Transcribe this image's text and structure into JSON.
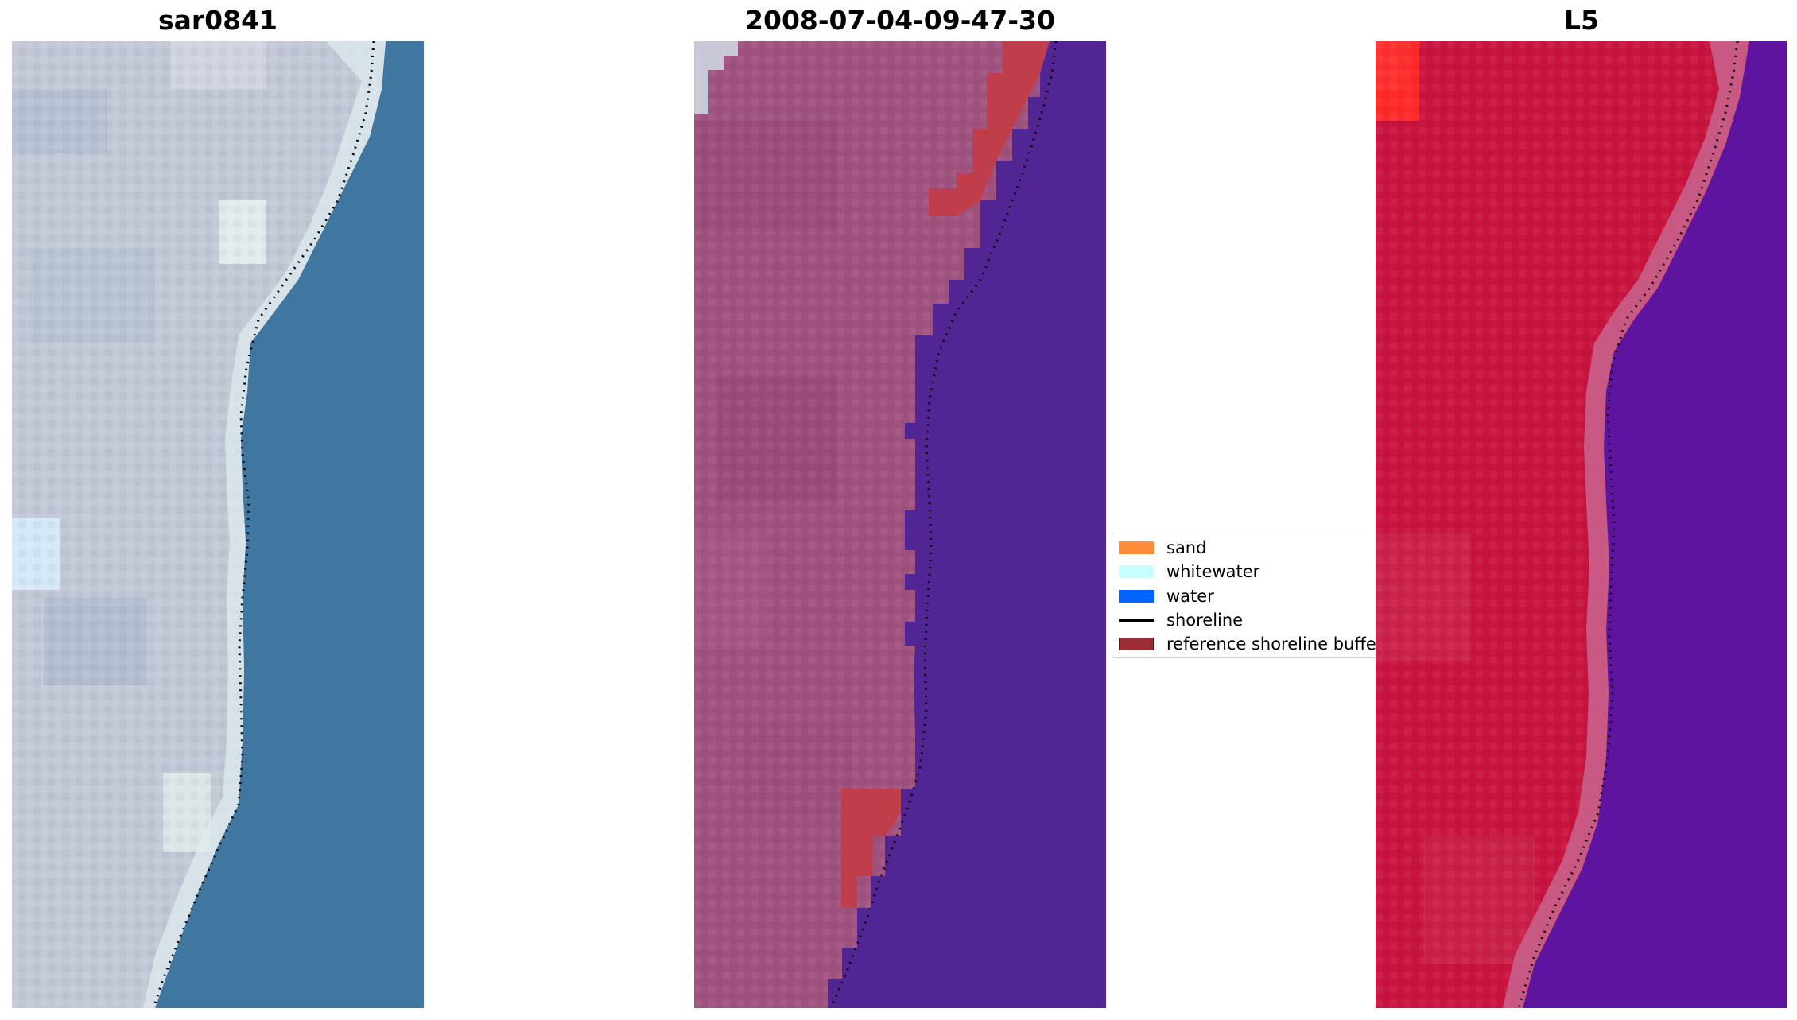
{
  "panels": [
    {
      "title": "sar0841"
    },
    {
      "title": "2008-07-04-09-47-30"
    },
    {
      "title": "L5"
    }
  ],
  "legend": {
    "items": [
      {
        "label": "sand",
        "color": "#ff8c3c"
      },
      {
        "label": "whitewater",
        "color": "#c8ffff"
      },
      {
        "label": "water",
        "color": "#0064ff"
      },
      {
        "label": "shoreline",
        "color": "#000000"
      },
      {
        "label": "reference shoreline buffer",
        "color": "#9b2c34"
      }
    ]
  },
  "colors": {
    "rgb_land": "#c2c8d6",
    "rgb_water": "#3f77a1",
    "class_land": "#a0527e",
    "class_water": "#512593",
    "class_buffer": "#c03e4c",
    "ndwi_land": "#c8143e",
    "ndwi_water": "#5f14a0"
  }
}
